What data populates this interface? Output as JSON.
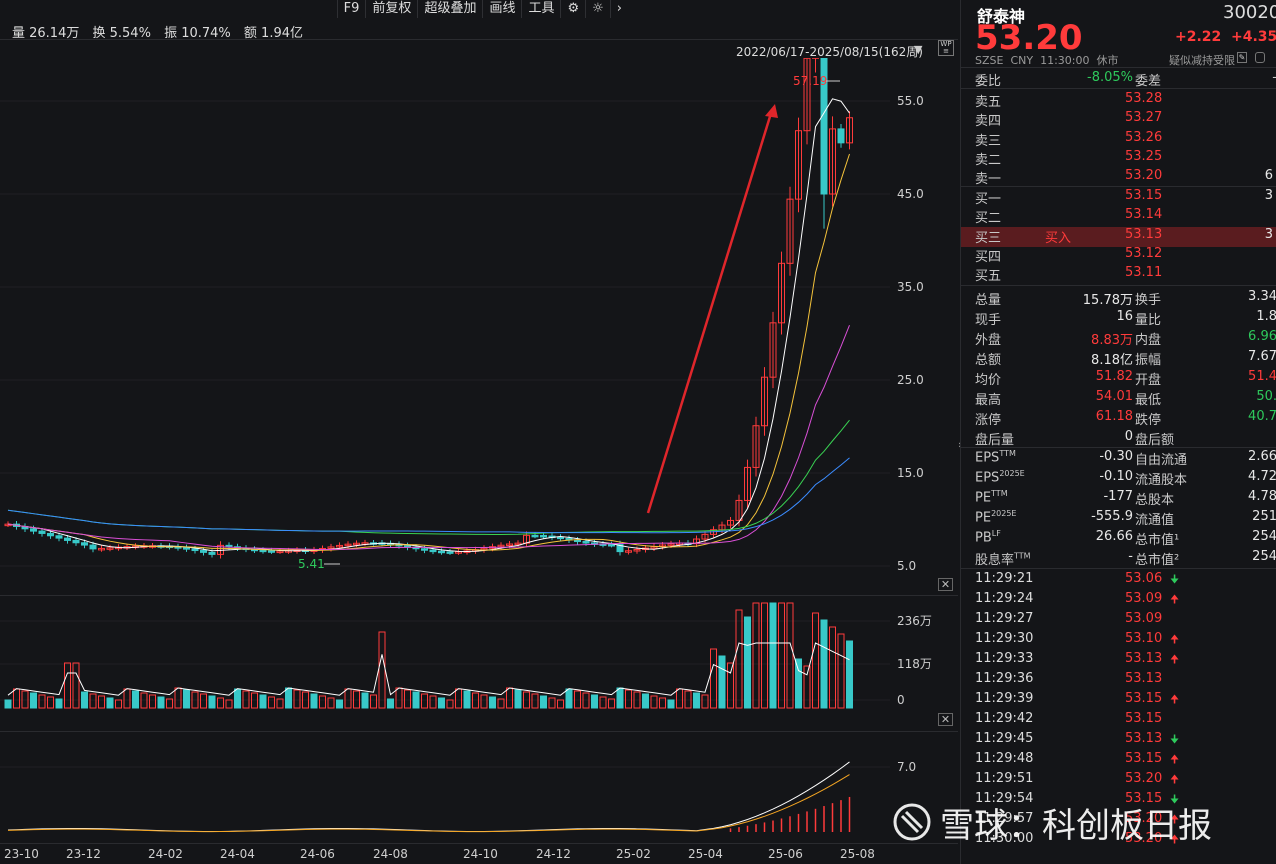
{
  "stats": {
    "volume": "量 26.14万",
    "turnover": "换 5.54%",
    "amplitude": "振 10.74%",
    "amount": "额 1.94亿"
  },
  "toolbar": [
    "F9",
    "前复权",
    "超级叠加",
    "画线",
    "工具"
  ],
  "date_range": "2022/06/17-2025/08/15(162周)",
  "main_chart": {
    "y_ticks": [
      "55.0",
      "45.0",
      "35.0",
      "25.0",
      "15.0",
      "5.0"
    ],
    "high_label": "57.19",
    "low_label": "5.41"
  },
  "vol_chart": {
    "y_ticks": [
      "236万",
      "118万",
      "0"
    ]
  },
  "macd_chart": {
    "y_ticks": [
      "7.0"
    ]
  },
  "x_axis": [
    "23-10",
    "23-12",
    "24-02",
    "24-04",
    "24-06",
    "24-08",
    "24-10",
    "24-12",
    "25-02",
    "25-04",
    "25-06",
    "25-08"
  ],
  "quote": {
    "name": "舒泰神",
    "code": "30020",
    "price": "53.20",
    "change": "+2.22",
    "change_pct": "+4.35",
    "exchange": "SZSE",
    "currency": "CNY",
    "time": "11:30:00",
    "status": "休市",
    "note": "疑似减持受限"
  },
  "committee": {
    "ratio_label": "委比",
    "ratio": "-8.05%",
    "diff_label": "委差",
    "diff": "-"
  },
  "asks": [
    {
      "label": "卖五",
      "price": "53.28",
      "vol": ""
    },
    {
      "label": "卖四",
      "price": "53.27",
      "vol": ""
    },
    {
      "label": "卖三",
      "price": "53.26",
      "vol": ""
    },
    {
      "label": "卖二",
      "price": "53.25",
      "vol": ""
    },
    {
      "label": "卖一",
      "price": "53.20",
      "vol": "6"
    }
  ],
  "bids": [
    {
      "label": "买一",
      "price": "53.15",
      "vol": "3"
    },
    {
      "label": "买二",
      "price": "53.14",
      "vol": ""
    },
    {
      "label": "买三",
      "price": "53.13",
      "vol": "3",
      "tag": "买入"
    },
    {
      "label": "买四",
      "price": "53.12",
      "vol": ""
    },
    {
      "label": "买五",
      "price": "53.11",
      "vol": ""
    }
  ],
  "stats_table": [
    {
      "l1": "总量",
      "v1": "15.78万",
      "c1": "white",
      "l2": "换手",
      "v2": "3.34",
      "c2": "white"
    },
    {
      "l1": "现手",
      "v1": "16",
      "c1": "white",
      "l2": "量比",
      "v2": "1.8",
      "c2": "white"
    },
    {
      "l1": "外盘",
      "v1": "8.83万",
      "c1": "red",
      "l2": "内盘",
      "v2": "6.96",
      "c2": "green"
    },
    {
      "l1": "总额",
      "v1": "8.18亿",
      "c1": "white",
      "l2": "振幅",
      "v2": "7.67",
      "c2": "white"
    },
    {
      "l1": "均价",
      "v1": "51.82",
      "c1": "red",
      "l2": "开盘",
      "v2": "51.4",
      "c2": "red"
    },
    {
      "l1": "最高",
      "v1": "54.01",
      "c1": "red",
      "l2": "最低",
      "v2": "50.",
      "c2": "green"
    },
    {
      "l1": "涨停",
      "v1": "61.18",
      "c1": "red",
      "l2": "跌停",
      "v2": "40.7",
      "c2": "green"
    },
    {
      "l1": "盘后量",
      "v1": "0",
      "c1": "white",
      "l2": "盘后额",
      "v2": "",
      "c2": "white"
    }
  ],
  "fund_table": [
    {
      "l1": "EPS",
      "s1": "TTM",
      "v1": "-0.30",
      "l2": "自由流通",
      "v2": "2.66"
    },
    {
      "l1": "EPS",
      "s1": "2025E",
      "v1": "-0.10",
      "l2": "流通股本",
      "v2": "4.72"
    },
    {
      "l1": "PE",
      "s1": "TTM",
      "v1": "-177",
      "l2": "总股本",
      "v2": "4.78"
    },
    {
      "l1": "PE",
      "s1": "2025E",
      "v1": "-555.9",
      "l2": "流通值",
      "v2": "251"
    },
    {
      "l1": "PB",
      "s1": "LF",
      "v1": "26.66",
      "l2": "总市值¹",
      "v2": "254"
    },
    {
      "l1": "股息率",
      "s1": "TTM",
      "v1": "-",
      "l2": "总市值²",
      "v2": "254"
    }
  ],
  "ticks": [
    {
      "time": "11:29:21",
      "price": "53.06",
      "dir": "down"
    },
    {
      "time": "11:29:24",
      "price": "53.09",
      "dir": "up"
    },
    {
      "time": "11:29:27",
      "price": "53.09",
      "dir": ""
    },
    {
      "time": "11:29:30",
      "price": "53.10",
      "dir": "up"
    },
    {
      "time": "11:29:33",
      "price": "53.13",
      "dir": "up"
    },
    {
      "time": "11:29:36",
      "price": "53.13",
      "dir": ""
    },
    {
      "time": "11:29:39",
      "price": "53.15",
      "dir": "up"
    },
    {
      "time": "11:29:42",
      "price": "53.15",
      "dir": ""
    },
    {
      "time": "11:29:45",
      "price": "53.13",
      "dir": "down"
    },
    {
      "time": "11:29:48",
      "price": "53.15",
      "dir": "up"
    },
    {
      "time": "11:29:51",
      "price": "53.20",
      "dir": "up"
    },
    {
      "time": "11:29:54",
      "price": "53.15",
      "dir": "down"
    },
    {
      "time": "11:29:57",
      "price": "53.20",
      "dir": "up"
    },
    {
      "time": "11:30:00",
      "price": "53.20",
      "dir": "up"
    }
  ],
  "watermark": "雪球：科创板日报",
  "colors": {
    "up": "#ff3b3b",
    "down": "#38c9c9",
    "ma5": "#ffffff",
    "ma10": "#f5c33b",
    "ma20": "#d94fd6",
    "ma60": "#39d353",
    "ma120": "#3b8cff"
  }
}
